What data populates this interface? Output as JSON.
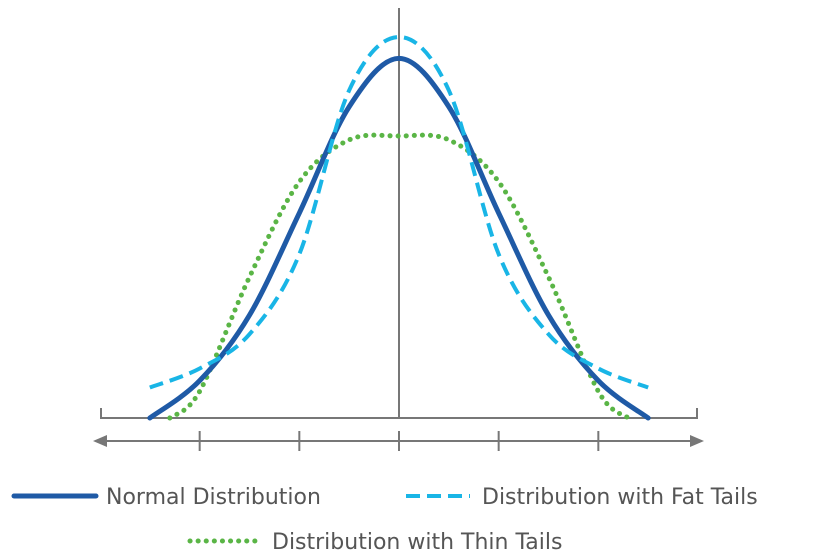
{
  "chart_data": {
    "type": "line",
    "title": "",
    "xlabel": "",
    "ylabel": "",
    "xlim": [
      -3,
      3
    ],
    "ylim": [
      0,
      1
    ],
    "grid": false,
    "tick_labels_shown": false,
    "x_ticks": [
      -2,
      -1,
      0,
      1,
      2
    ],
    "legend_position": "bottom",
    "axis_color": "#777777",
    "series": [
      {
        "name": "Normal Distribution",
        "color": "#1f5aa6",
        "line_style": "solid",
        "x": [
          -2.5,
          -2.0,
          -1.5,
          -1.0,
          -0.5,
          0.0,
          0.5,
          1.0,
          1.5,
          2.0,
          2.5
        ],
        "y": [
          0.0,
          0.098,
          0.27,
          0.538,
          0.817,
          0.944,
          0.817,
          0.538,
          0.27,
          0.098,
          0.0
        ]
      },
      {
        "name": "Distribution with Fat Tails",
        "color": "#19b5e6",
        "line_style": "dashed",
        "x": [
          -2.5,
          -2.0,
          -1.5,
          -1.0,
          -0.5,
          0.0,
          0.5,
          1.0,
          1.5,
          2.0,
          2.5
        ],
        "y": [
          0.08,
          0.13,
          0.22,
          0.43,
          0.86,
          1.0,
          0.86,
          0.43,
          0.22,
          0.13,
          0.08
        ]
      },
      {
        "name": "Distribution with Thin Tails",
        "color": "#5ab546",
        "line_style": "dotted",
        "x": [
          -2.3,
          -2.0,
          -1.5,
          -1.0,
          -0.5,
          0.0,
          0.5,
          1.0,
          1.5,
          2.0,
          2.3
        ],
        "y": [
          0.0,
          0.07,
          0.37,
          0.62,
          0.73,
          0.74,
          0.73,
          0.62,
          0.37,
          0.07,
          0.0
        ]
      }
    ]
  }
}
